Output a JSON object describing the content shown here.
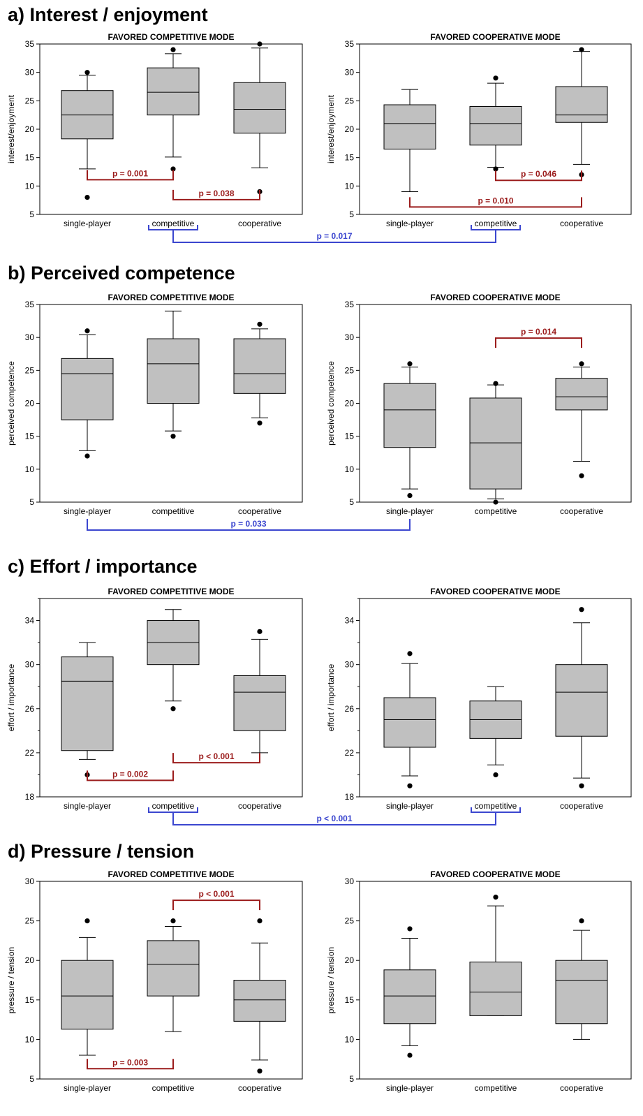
{
  "colors": {
    "box_fill": "#c0c0c0",
    "within": "#9b1c1c",
    "between": "#3b46cf",
    "ink": "#000000"
  },
  "chart_data": [
    {
      "section": "a) Interest / enjoyment",
      "type": "box",
      "ylabel": "interest/enjoyment",
      "ylim": [
        5,
        35
      ],
      "yticks": [
        5,
        10,
        15,
        20,
        25,
        30,
        35
      ],
      "grid": false,
      "panels": [
        {
          "title": "FAVORED COMPETITIVE MODE",
          "categories": [
            "single-player",
            "competitive",
            "cooperative"
          ],
          "boxes": [
            {
              "q1": 18.3,
              "median": 22.5,
              "q3": 26.8,
              "whisker_low": 13.0,
              "whisker_high": 29.5,
              "outliers": [
                30,
                8
              ]
            },
            {
              "q1": 22.5,
              "median": 26.5,
              "q3": 30.8,
              "whisker_low": 15.1,
              "whisker_high": 33.3,
              "outliers": [
                34,
                13
              ]
            },
            {
              "q1": 19.3,
              "median": 23.5,
              "q3": 28.2,
              "whisker_low": 13.2,
              "whisker_high": 34.3,
              "outliers": [
                35,
                9
              ]
            }
          ],
          "within": [
            {
              "from": 0,
              "to": 1,
              "label": "p = 0.001",
              "y": 11.1
            },
            {
              "from": 1,
              "to": 2,
              "label": "p = 0.038",
              "y": 7.6
            }
          ]
        },
        {
          "title": "FAVORED COOPERATIVE MODE",
          "categories": [
            "single-player",
            "competitive",
            "cooperative"
          ],
          "boxes": [
            {
              "q1": 16.5,
              "median": 21.0,
              "q3": 24.3,
              "whisker_low": 9.0,
              "whisker_high": 27.0,
              "outliers": []
            },
            {
              "q1": 17.2,
              "median": 21.0,
              "q3": 24.0,
              "whisker_low": 13.3,
              "whisker_high": 28.1,
              "outliers": [
                29,
                13
              ]
            },
            {
              "q1": 21.2,
              "median": 22.5,
              "q3": 27.5,
              "whisker_low": 13.8,
              "whisker_high": 33.7,
              "outliers": [
                34,
                12
              ]
            }
          ],
          "within": [
            {
              "from": 1,
              "to": 2,
              "label": "p = 0.046",
              "y": 11.0
            },
            {
              "from": 0,
              "to": 2,
              "label": "p = 0.010",
              "y": 6.3
            }
          ]
        }
      ],
      "between": {
        "category": "competitive",
        "label": "p = 0.017"
      }
    },
    {
      "section": "b) Perceived competence",
      "type": "box",
      "ylabel": "perceived competence",
      "ylim": [
        5,
        35
      ],
      "yticks": [
        5,
        10,
        15,
        20,
        25,
        30,
        35
      ],
      "grid": false,
      "panels": [
        {
          "title": "FAVORED COMPETITIVE MODE",
          "categories": [
            "single-player",
            "competitive",
            "cooperative"
          ],
          "boxes": [
            {
              "q1": 17.5,
              "median": 24.5,
              "q3": 26.8,
              "whisker_low": 12.8,
              "whisker_high": 30.4,
              "outliers": [
                31,
                12
              ]
            },
            {
              "q1": 20.0,
              "median": 26.0,
              "q3": 29.8,
              "whisker_low": 15.8,
              "whisker_high": 34.0,
              "outliers": [
                15
              ]
            },
            {
              "q1": 21.5,
              "median": 24.5,
              "q3": 29.8,
              "whisker_low": 17.8,
              "whisker_high": 31.3,
              "outliers": [
                32,
                17
              ]
            }
          ],
          "within": []
        },
        {
          "title": "FAVORED COOPERATIVE MODE",
          "categories": [
            "single-player",
            "competitive",
            "cooperative"
          ],
          "boxes": [
            {
              "q1": 13.3,
              "median": 19.0,
              "q3": 23.0,
              "whisker_low": 7.0,
              "whisker_high": 25.5,
              "outliers": [
                26,
                6
              ]
            },
            {
              "q1": 7.0,
              "median": 14.0,
              "q3": 20.8,
              "whisker_low": 5.5,
              "whisker_high": 22.8,
              "outliers": [
                23,
                5
              ]
            },
            {
              "q1": 19.0,
              "median": 21.0,
              "q3": 23.8,
              "whisker_low": 11.2,
              "whisker_high": 25.5,
              "outliers": [
                26,
                9
              ]
            }
          ],
          "within": [
            {
              "from": 1,
              "to": 2,
              "label": "p = 0.014",
              "y": 29.9,
              "above": true
            }
          ]
        }
      ],
      "between": {
        "category": "single-player",
        "label": "p = 0.033"
      }
    },
    {
      "section": "c) Effort / importance",
      "type": "box",
      "ylabel": "effort / importance",
      "ylim": [
        18,
        36
      ],
      "yticks": [
        18,
        22,
        26,
        30,
        34
      ],
      "minor_yticks": [
        20,
        24,
        28,
        32,
        36
      ],
      "grid": false,
      "panels": [
        {
          "title": "FAVORED COMPETITIVE MODE",
          "categories": [
            "single-player",
            "competitive",
            "cooperative"
          ],
          "boxes": [
            {
              "q1": 22.2,
              "median": 28.5,
              "q3": 30.7,
              "whisker_low": 21.4,
              "whisker_high": 32.0,
              "outliers": [
                20
              ]
            },
            {
              "q1": 30.0,
              "median": 32.0,
              "q3": 34.0,
              "whisker_low": 26.7,
              "whisker_high": 35.0,
              "outliers": [
                26
              ]
            },
            {
              "q1": 24.0,
              "median": 27.5,
              "q3": 29.0,
              "whisker_low": 22.0,
              "whisker_high": 32.3,
              "outliers": [
                33
              ]
            }
          ],
          "within": [
            {
              "from": 0,
              "to": 1,
              "label": "p = 0.002",
              "y": 19.5
            },
            {
              "from": 1,
              "to": 2,
              "label": "p < 0.001",
              "y": 21.1
            }
          ]
        },
        {
          "title": "FAVORED COOPERATIVE MODE",
          "categories": [
            "single-player",
            "competitive",
            "cooperative"
          ],
          "boxes": [
            {
              "q1": 22.5,
              "median": 25.0,
              "q3": 27.0,
              "whisker_low": 19.9,
              "whisker_high": 30.1,
              "outliers": [
                31,
                19
              ]
            },
            {
              "q1": 23.3,
              "median": 25.0,
              "q3": 26.7,
              "whisker_low": 20.9,
              "whisker_high": 28.0,
              "outliers": [
                20
              ]
            },
            {
              "q1": 23.5,
              "median": 27.5,
              "q3": 30.0,
              "whisker_low": 19.7,
              "whisker_high": 33.8,
              "outliers": [
                35,
                19
              ]
            }
          ],
          "within": []
        }
      ],
      "between": {
        "category": "competitive",
        "label": "p < 0.001"
      }
    },
    {
      "section": "d) Pressure / tension",
      "type": "box",
      "ylabel": "pressure / tension",
      "ylim": [
        5,
        30
      ],
      "yticks": [
        5,
        10,
        15,
        20,
        25,
        30
      ],
      "grid": false,
      "panels": [
        {
          "title": "FAVORED COMPETITIVE MODE",
          "categories": [
            "single-player",
            "competitive",
            "cooperative"
          ],
          "boxes": [
            {
              "q1": 11.3,
              "median": 15.5,
              "q3": 20.0,
              "whisker_low": 8.0,
              "whisker_high": 22.9,
              "outliers": [
                25
              ]
            },
            {
              "q1": 15.5,
              "median": 19.5,
              "q3": 22.5,
              "whisker_low": 11.0,
              "whisker_high": 24.3,
              "outliers": [
                25
              ]
            },
            {
              "q1": 12.3,
              "median": 15.0,
              "q3": 17.5,
              "whisker_low": 7.4,
              "whisker_high": 22.2,
              "outliers": [
                25,
                6
              ]
            }
          ],
          "within": [
            {
              "from": 1,
              "to": 2,
              "label": "p < 0.001",
              "y": 27.6,
              "above": true
            },
            {
              "from": 0,
              "to": 1,
              "label": "p = 0.003",
              "y": 6.3
            }
          ]
        },
        {
          "title": "FAVORED COOPERATIVE MODE",
          "categories": [
            "single-player",
            "competitive",
            "cooperative"
          ],
          "boxes": [
            {
              "q1": 12.0,
              "median": 15.5,
              "q3": 18.8,
              "whisker_low": 9.2,
              "whisker_high": 22.8,
              "outliers": [
                24,
                8
              ]
            },
            {
              "q1": 13.0,
              "median": 16.0,
              "q3": 19.8,
              "whisker_low": 13.0,
              "whisker_high": 26.9,
              "outliers": [
                28
              ]
            },
            {
              "q1": 12.0,
              "median": 17.5,
              "q3": 20.0,
              "whisker_low": 10.0,
              "whisker_high": 23.8,
              "outliers": [
                25
              ]
            }
          ],
          "within": []
        }
      ]
    }
  ]
}
